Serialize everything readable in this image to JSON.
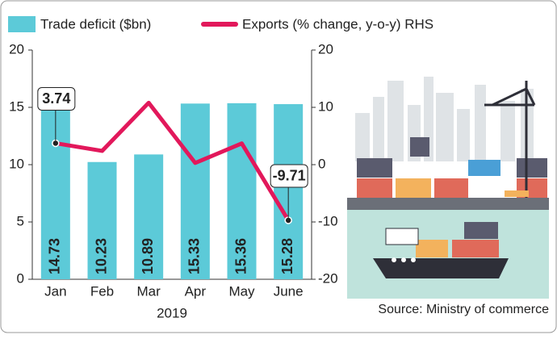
{
  "chart_data": {
    "type": "bar_line",
    "categories": [
      "Jan",
      "Feb",
      "Mar",
      "Apr",
      "May",
      "June"
    ],
    "xlabel": "2019",
    "series": [
      {
        "name": "Trade deficit ($bn)",
        "type": "bar",
        "color": "#5ccad8",
        "values": [
          14.73,
          10.23,
          10.89,
          15.33,
          15.36,
          15.28
        ]
      },
      {
        "name": "Exports (% change, y-o-y) RHS",
        "type": "line",
        "axis": "y2",
        "color": "#e2185b",
        "values": [
          3.74,
          2.4,
          10.8,
          0.3,
          3.7,
          -9.71
        ],
        "value_labels": [
          "3.74",
          null,
          null,
          null,
          null,
          "-9.71"
        ]
      }
    ],
    "ylim": [
      0,
      20
    ],
    "yticks": [
      0,
      5,
      10,
      15,
      20
    ],
    "y2lim": [
      -20,
      20
    ],
    "y2ticks": [
      -20,
      -10,
      0,
      10,
      20
    ],
    "source": "Source: Ministry of commerce"
  }
}
